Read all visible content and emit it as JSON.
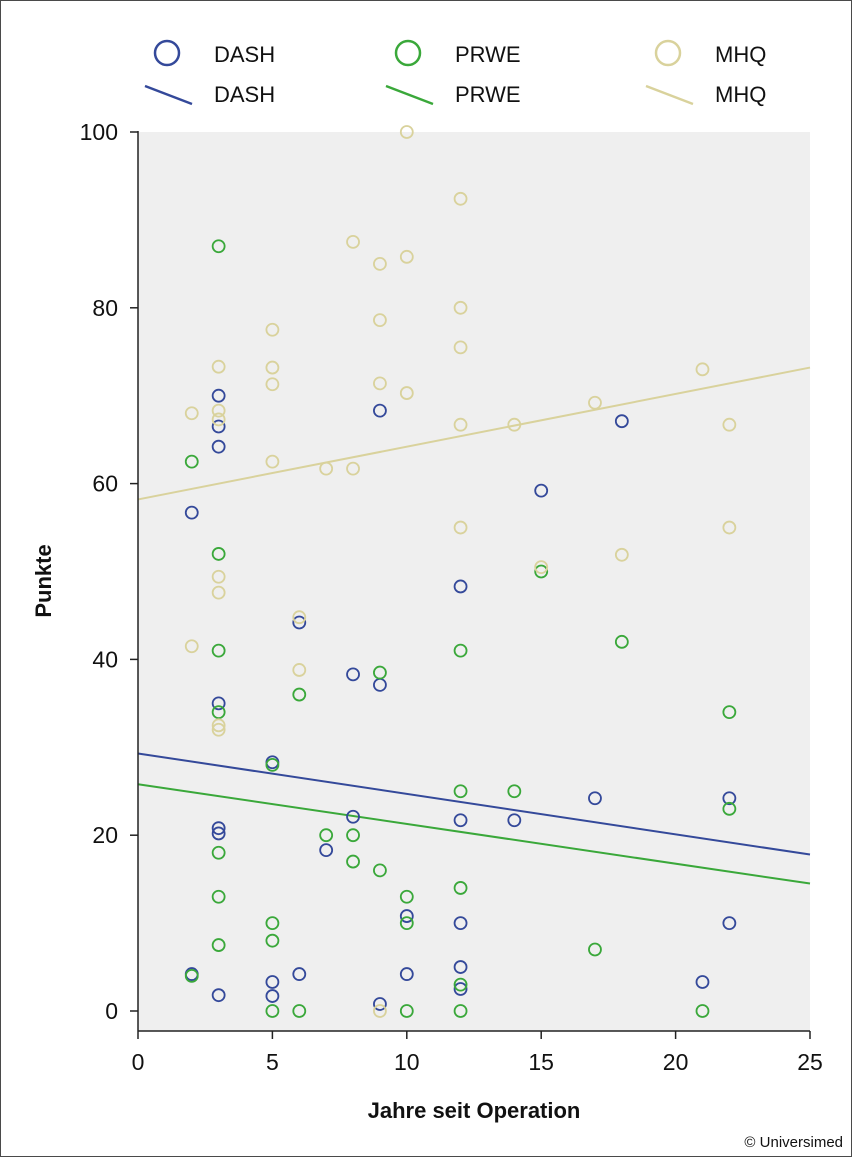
{
  "chart_data": {
    "type": "scatter",
    "title": "",
    "xlabel": "Jahre seit Operation",
    "ylabel": "Punkte",
    "xlim": [
      0,
      25
    ],
    "ylim": [
      0,
      100
    ],
    "xticks": [
      0,
      5,
      10,
      15,
      20,
      25
    ],
    "yticks": [
      0,
      20,
      40,
      60,
      80,
      100
    ],
    "grid": false,
    "legend_position": "top",
    "credit": "© Universimed",
    "series": [
      {
        "name": "DASH",
        "color": "#34499a",
        "points": [
          [
            2,
            4.2
          ],
          [
            2,
            56.7
          ],
          [
            3,
            70
          ],
          [
            3,
            66.5
          ],
          [
            3,
            64.2
          ],
          [
            3,
            35
          ],
          [
            3,
            20.8
          ],
          [
            3,
            20.2
          ],
          [
            3,
            1.8
          ],
          [
            5,
            28.3
          ],
          [
            5,
            3.3
          ],
          [
            5,
            1.7
          ],
          [
            6,
            44.2
          ],
          [
            6,
            4.2
          ],
          [
            7,
            18.3
          ],
          [
            8,
            38.3
          ],
          [
            8,
            22.1
          ],
          [
            9,
            68.3
          ],
          [
            9,
            37.1
          ],
          [
            9,
            0.8
          ],
          [
            10,
            10.8
          ],
          [
            10,
            4.2
          ],
          [
            12,
            48.3
          ],
          [
            12,
            21.7
          ],
          [
            12,
            10
          ],
          [
            12,
            5
          ],
          [
            12,
            2.5
          ],
          [
            14,
            21.7
          ],
          [
            15,
            59.2
          ],
          [
            17,
            24.2
          ],
          [
            18,
            67.1
          ],
          [
            21,
            3.3
          ],
          [
            22,
            24.2
          ],
          [
            22,
            10
          ]
        ],
        "trend": [
          29.3,
          17.8
        ]
      },
      {
        "name": "PRWE",
        "color": "#3aa83a",
        "points": [
          [
            2,
            62.5
          ],
          [
            2,
            4
          ],
          [
            3,
            87
          ],
          [
            3,
            52
          ],
          [
            3,
            41
          ],
          [
            3,
            34
          ],
          [
            3,
            18
          ],
          [
            3,
            13
          ],
          [
            3,
            7.5
          ],
          [
            5,
            28
          ],
          [
            5,
            10
          ],
          [
            5,
            8
          ],
          [
            5,
            0
          ],
          [
            6,
            36
          ],
          [
            6,
            0
          ],
          [
            7,
            20
          ],
          [
            8,
            20
          ],
          [
            8,
            17
          ],
          [
            9,
            38.5
          ],
          [
            9,
            16
          ],
          [
            10,
            13
          ],
          [
            10,
            10
          ],
          [
            10,
            0
          ],
          [
            12,
            41
          ],
          [
            12,
            25
          ],
          [
            12,
            14
          ],
          [
            12,
            3
          ],
          [
            12,
            0
          ],
          [
            14,
            25
          ],
          [
            15,
            50
          ],
          [
            17,
            7
          ],
          [
            18,
            42
          ],
          [
            21,
            0
          ],
          [
            22,
            34
          ],
          [
            22,
            23
          ]
        ],
        "trend": [
          25.8,
          14.5
        ]
      },
      {
        "name": "MHQ",
        "color": "#d9d29c",
        "points": [
          [
            2,
            68
          ],
          [
            2,
            41.5
          ],
          [
            3,
            73.3
          ],
          [
            3,
            68.3
          ],
          [
            3,
            67.3
          ],
          [
            3,
            49.4
          ],
          [
            3,
            47.6
          ],
          [
            3,
            32.5
          ],
          [
            3,
            32
          ],
          [
            5,
            77.5
          ],
          [
            5,
            73.2
          ],
          [
            5,
            71.3
          ],
          [
            5,
            62.5
          ],
          [
            6,
            44.8
          ],
          [
            6,
            38.8
          ],
          [
            7,
            61.7
          ],
          [
            8,
            87.5
          ],
          [
            8,
            61.7
          ],
          [
            9,
            85
          ],
          [
            9,
            78.6
          ],
          [
            9,
            71.4
          ],
          [
            9,
            0
          ],
          [
            10,
            100
          ],
          [
            10,
            85.8
          ],
          [
            10,
            70.3
          ],
          [
            12,
            92.4
          ],
          [
            12,
            80
          ],
          [
            12,
            75.5
          ],
          [
            12,
            66.7
          ],
          [
            12,
            55
          ],
          [
            14,
            66.7
          ],
          [
            15,
            50.5
          ],
          [
            17,
            69.2
          ],
          [
            18,
            51.9
          ],
          [
            21,
            73
          ],
          [
            22,
            66.7
          ],
          [
            22,
            55
          ]
        ],
        "trend": [
          58.2,
          73.2
        ]
      }
    ]
  }
}
